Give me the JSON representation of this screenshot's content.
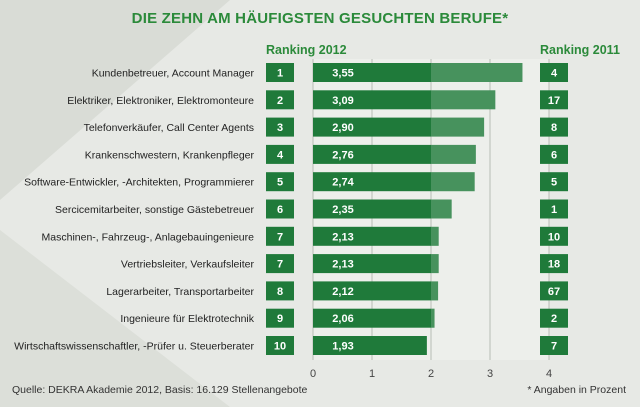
{
  "title": "DIE ZEHN AM HÄUFIGSTEN GESUCHTEN BERUFE*",
  "column_headers": {
    "ranking_2012": "Ranking 2012",
    "ranking_2011": "Ranking 2011"
  },
  "source": "Quelle: DEKRA Akademie 2012, Basis: 16.129 Stellenangebote",
  "footnote": "* Angaben in Prozent",
  "colors": {
    "accent": "#2b8a3a",
    "bar": "#1f7a3a",
    "rank_box": "#1f7a3a",
    "background": "#e7e9e5"
  },
  "chart_data": {
    "type": "bar",
    "orientation": "horizontal",
    "title": "DIE ZEHN AM HÄUFIGSTEN GESUCHTEN BERUFE*",
    "categories": [
      "Kundenbetreuer, Account Manager",
      "Elektriker, Elektroniker, Elektromonteure",
      "Telefonverkäufer, Call Center Agents",
      "Krankenschwestern, Krankenpfleger",
      "Software-Entwickler, -Architekten, Programmierer",
      "Sercicemitarbeiter, sonstige Gästebetreuer",
      "Maschinen-, Fahrzeug-, Anlagebauingenieure",
      "Vertriebsleiter, Verkaufsleiter",
      "Lagerarbeiter, Transportarbeiter",
      "Ingenieure für Elektrotechnik",
      "Wirtschaftswissenschaftler, -Prüfer u. Steuerberater"
    ],
    "values": [
      3.55,
      3.09,
      2.9,
      2.76,
      2.74,
      2.35,
      2.13,
      2.13,
      2.12,
      2.06,
      1.93
    ],
    "value_labels": [
      "3,55",
      "3,09",
      "2,90",
      "2,76",
      "2,74",
      "2,35",
      "2,13",
      "2,13",
      "2,12",
      "2,06",
      "1,93"
    ],
    "ranking_2012": [
      "1",
      "2",
      "3",
      "4",
      "5",
      "6",
      "7",
      "7",
      "8",
      "9",
      "10"
    ],
    "ranking_2011": [
      "4",
      "17",
      "8",
      "6",
      "5",
      "1",
      "10",
      "18",
      "67",
      "2",
      "7"
    ],
    "xlim": [
      0,
      4
    ],
    "xticks": [
      0,
      1,
      2,
      3,
      4
    ],
    "xtick_labels": [
      "0",
      "1",
      "2",
      "3",
      "4"
    ],
    "xlabel": "",
    "ylabel": "",
    "grid": true
  }
}
